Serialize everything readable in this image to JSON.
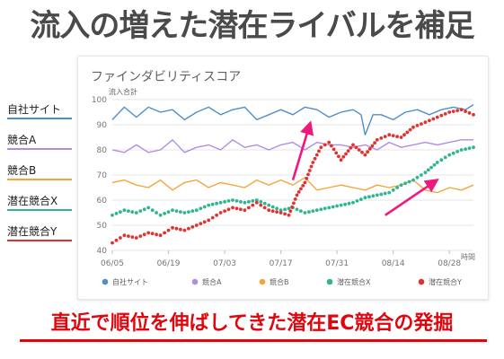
{
  "headline": "流入の増えた潜在ライバルを補足",
  "footer_text": "直近で順位を伸ばしてきた潜在EC競合の発掘",
  "colors": {
    "self": "#4e8fca",
    "compA": "#b18ce3",
    "compB": "#f4a63a",
    "potentialX": "#2fb58f",
    "potentialY": "#e0322f",
    "arrow": "#f0177d",
    "accent_red": "#e1060d"
  },
  "left_legend": [
    {
      "label": "自社サイト",
      "color": "#4e8fca"
    },
    {
      "label": "競合A",
      "color": "#b18ce3"
    },
    {
      "label": "競合B",
      "color": "#f4a63a"
    },
    {
      "label": "潜在競合X",
      "color": "#2fb58f"
    },
    {
      "label": "潜在競合Y",
      "color": "#e0322f"
    }
  ],
  "chart_data": {
    "type": "line",
    "title": "ファインダビリティスコア",
    "ylabel": "流入合計",
    "xlabel": "時間",
    "ylim": [
      40,
      100
    ],
    "yticks": [
      40,
      50,
      60,
      70,
      80,
      90,
      100
    ],
    "x_ticks": [
      "06/05",
      "06/19",
      "07/03",
      "07/17",
      "07/31",
      "08/14",
      "08/28"
    ],
    "x_range": [
      "06/05",
      "09/03"
    ],
    "grid": "horizontal",
    "legend_position": "bottom",
    "series": [
      {
        "name": "自社サイト",
        "style": "solid",
        "color": "#4e8fca",
        "points": [
          [
            0,
            92
          ],
          [
            3,
            97
          ],
          [
            6,
            93
          ],
          [
            9,
            97
          ],
          [
            12,
            95
          ],
          [
            15,
            96
          ],
          [
            18,
            92
          ],
          [
            21,
            95
          ],
          [
            24,
            97
          ],
          [
            27,
            94
          ],
          [
            30,
            96
          ],
          [
            33,
            97
          ],
          [
            36,
            92
          ],
          [
            39,
            94
          ],
          [
            42,
            96
          ],
          [
            45,
            94
          ],
          [
            48,
            97
          ],
          [
            51,
            96
          ],
          [
            54,
            93
          ],
          [
            57,
            95
          ],
          [
            60,
            96
          ],
          [
            62,
            94
          ],
          [
            63,
            86
          ],
          [
            65,
            94
          ],
          [
            67,
            94
          ],
          [
            70,
            92
          ],
          [
            73,
            95
          ],
          [
            76,
            96
          ],
          [
            79,
            94
          ],
          [
            82,
            96
          ],
          [
            85,
            97
          ],
          [
            88,
            96
          ],
          [
            90,
            98
          ]
        ]
      },
      {
        "name": "競合A",
        "style": "solid",
        "color": "#b18ce3",
        "points": [
          [
            0,
            80
          ],
          [
            3,
            79
          ],
          [
            6,
            82
          ],
          [
            9,
            79
          ],
          [
            12,
            80
          ],
          [
            15,
            84
          ],
          [
            18,
            79
          ],
          [
            21,
            81
          ],
          [
            24,
            82
          ],
          [
            27,
            80
          ],
          [
            30,
            84
          ],
          [
            33,
            81
          ],
          [
            36,
            82
          ],
          [
            39,
            80
          ],
          [
            42,
            82
          ],
          [
            45,
            83
          ],
          [
            48,
            80
          ],
          [
            51,
            83
          ],
          [
            54,
            82
          ],
          [
            57,
            82
          ],
          [
            60,
            81
          ],
          [
            63,
            82
          ],
          [
            66,
            80
          ],
          [
            69,
            83
          ],
          [
            72,
            81
          ],
          [
            75,
            82
          ],
          [
            78,
            83
          ],
          [
            81,
            82
          ],
          [
            84,
            83
          ],
          [
            87,
            84
          ],
          [
            90,
            84
          ]
        ]
      },
      {
        "name": "競合B",
        "style": "solid",
        "color": "#f4a63a",
        "points": [
          [
            0,
            67
          ],
          [
            3,
            68
          ],
          [
            6,
            66
          ],
          [
            9,
            65
          ],
          [
            12,
            68
          ],
          [
            15,
            64
          ],
          [
            18,
            67
          ],
          [
            21,
            68
          ],
          [
            24,
            65
          ],
          [
            27,
            67
          ],
          [
            30,
            66
          ],
          [
            33,
            65
          ],
          [
            36,
            68
          ],
          [
            39,
            66
          ],
          [
            42,
            68
          ],
          [
            45,
            66
          ],
          [
            48,
            69
          ],
          [
            51,
            64
          ],
          [
            54,
            65
          ],
          [
            57,
            66
          ],
          [
            60,
            65
          ],
          [
            63,
            64
          ],
          [
            66,
            66
          ],
          [
            69,
            65
          ],
          [
            72,
            66
          ],
          [
            75,
            68
          ],
          [
            78,
            64
          ],
          [
            81,
            63
          ],
          [
            84,
            65
          ],
          [
            87,
            64
          ],
          [
            90,
            66
          ]
        ]
      },
      {
        "name": "潜在競合X",
        "style": "dotted",
        "color": "#2fb58f",
        "points": [
          [
            0,
            54
          ],
          [
            3,
            56
          ],
          [
            6,
            55
          ],
          [
            9,
            57
          ],
          [
            12,
            54
          ],
          [
            15,
            56
          ],
          [
            18,
            55
          ],
          [
            21,
            56
          ],
          [
            24,
            58
          ],
          [
            27,
            59
          ],
          [
            30,
            60
          ],
          [
            33,
            59
          ],
          [
            36,
            60
          ],
          [
            39,
            58
          ],
          [
            42,
            56
          ],
          [
            45,
            57
          ],
          [
            48,
            55
          ],
          [
            51,
            56
          ],
          [
            54,
            57
          ],
          [
            57,
            58
          ],
          [
            60,
            59
          ],
          [
            63,
            61
          ],
          [
            66,
            62
          ],
          [
            69,
            63
          ],
          [
            72,
            66
          ],
          [
            75,
            68
          ],
          [
            78,
            71
          ],
          [
            81,
            75
          ],
          [
            84,
            78
          ],
          [
            87,
            80
          ],
          [
            90,
            81
          ]
        ]
      },
      {
        "name": "潜在競合Y",
        "style": "dotted",
        "color": "#e0322f",
        "points": [
          [
            0,
            43
          ],
          [
            3,
            46
          ],
          [
            6,
            45
          ],
          [
            9,
            47
          ],
          [
            12,
            46
          ],
          [
            15,
            49
          ],
          [
            18,
            48
          ],
          [
            21,
            50
          ],
          [
            24,
            52
          ],
          [
            27,
            55
          ],
          [
            30,
            57
          ],
          [
            33,
            56
          ],
          [
            36,
            59
          ],
          [
            39,
            56
          ],
          [
            42,
            55
          ],
          [
            44,
            54
          ],
          [
            46,
            62
          ],
          [
            48,
            67
          ],
          [
            50,
            75
          ],
          [
            52,
            81
          ],
          [
            54,
            83
          ],
          [
            57,
            76
          ],
          [
            60,
            82
          ],
          [
            63,
            78
          ],
          [
            66,
            84
          ],
          [
            69,
            86
          ],
          [
            72,
            85
          ],
          [
            75,
            89
          ],
          [
            78,
            91
          ],
          [
            81,
            93
          ],
          [
            84,
            95
          ],
          [
            87,
            96
          ],
          [
            90,
            94
          ]
        ]
      }
    ],
    "annotations": [
      {
        "type": "arrow",
        "from": [
          45,
          68
        ],
        "to": [
          49,
          89
        ]
      },
      {
        "type": "arrow",
        "from": [
          68,
          54
        ],
        "to": [
          80,
          67
        ]
      }
    ]
  }
}
